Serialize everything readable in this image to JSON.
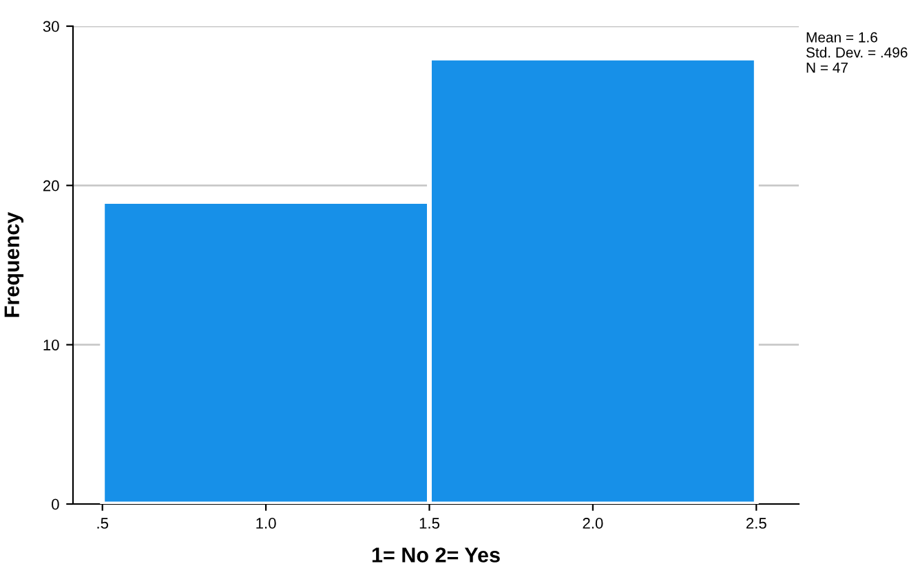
{
  "chart_data": {
    "type": "histogram",
    "xlabel": "1= No 2= Yes",
    "ylabel": "Frequency",
    "bins": [
      0.5,
      1.5,
      2.5
    ],
    "values": [
      19,
      28
    ],
    "color": "#1790e8",
    "xlim": [
      0.41,
      2.63
    ],
    "ylim": [
      0,
      30
    ],
    "xticks": [
      {
        "value": 0.5,
        "label": ".5"
      },
      {
        "value": 1.0,
        "label": "1.0"
      },
      {
        "value": 1.5,
        "label": "1.5"
      },
      {
        "value": 2.0,
        "label": "2.0"
      },
      {
        "value": 2.5,
        "label": "2.5"
      }
    ],
    "yticks": [
      0,
      10,
      20,
      30
    ],
    "grid": "y",
    "annotations": [
      "Mean = 1.6",
      "Std. Dev. = .496",
      "N = 47"
    ]
  }
}
